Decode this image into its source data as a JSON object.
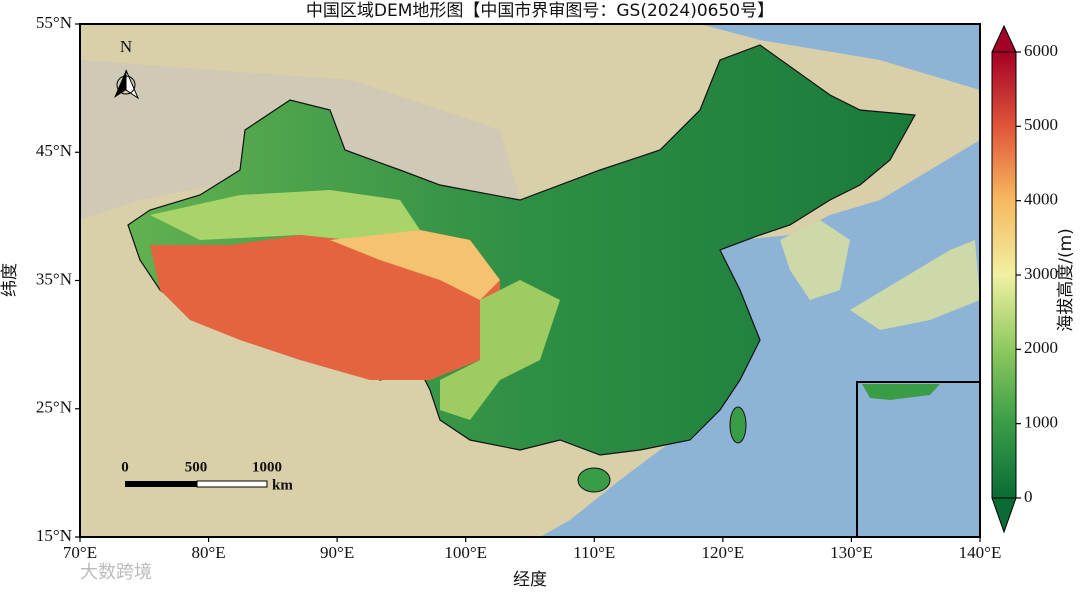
{
  "map": {
    "title": "中国区域DEM地形图【中国市界审图号：GS(2024)0650号】",
    "x_label": "经度",
    "y_label": "纬度",
    "xlim": [
      70,
      140
    ],
    "ylim": [
      15,
      55
    ],
    "xticks": [
      {
        "value": 70,
        "label": "70°E"
      },
      {
        "value": 80,
        "label": "80°E"
      },
      {
        "value": 90,
        "label": "90°E"
      },
      {
        "value": 100,
        "label": "100°E"
      },
      {
        "value": 110,
        "label": "110°E"
      },
      {
        "value": 120,
        "label": "120°E"
      },
      {
        "value": 130,
        "label": "130°E"
      },
      {
        "value": 140,
        "label": "140°E"
      }
    ],
    "yticks": [
      {
        "value": 15,
        "label": "15°N"
      },
      {
        "value": 25,
        "label": "25°N"
      },
      {
        "value": 35,
        "label": "35°N"
      },
      {
        "value": 45,
        "label": "45°N"
      },
      {
        "value": 55,
        "label": "55°N"
      }
    ],
    "colorbar": {
      "label": "海拔高度/(m)",
      "lim": [
        0,
        6000
      ],
      "ticks": [
        0,
        1000,
        2000,
        3000,
        4000,
        5000,
        6000
      ]
    },
    "north_label": "N",
    "scale_bar": {
      "ticks": [
        0,
        500,
        1000
      ],
      "unit": "km"
    },
    "watermark": "大数跨境"
  }
}
